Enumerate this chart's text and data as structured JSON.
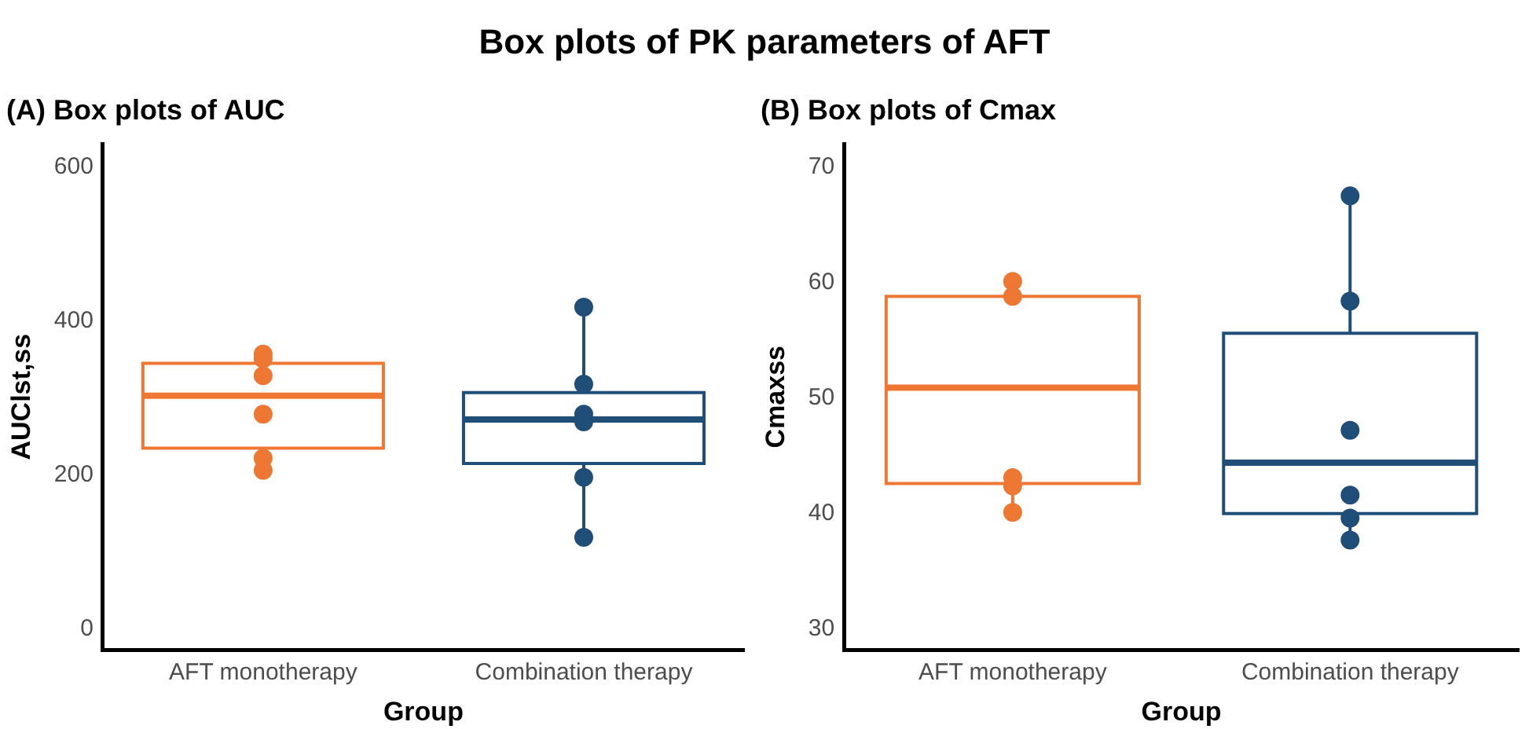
{
  "chart_data": [
    {
      "type": "other",
      "title": "Box plots of PK parameters of AFT"
    },
    {
      "type": "box",
      "title": "(A) Box plots of AUC",
      "xlabel": "Group",
      "ylabel": "AUClst,ss",
      "categories": [
        "AFT monotherapy",
        "Combination therapy"
      ],
      "colors": [
        "#ee7733",
        "#1f4e79"
      ],
      "boxes": [
        {
          "low": 206,
          "q1": 235,
          "median": 303,
          "q3": 345,
          "high": 357
        },
        {
          "low": 119,
          "q1": 215,
          "median": 272,
          "q3": 307,
          "high": 418
        }
      ],
      "ylim": [
        -27,
        630
      ],
      "yticks": [
        0,
        200,
        400,
        600
      ],
      "grid": false,
      "legend": false,
      "marker": "circle",
      "series": [
        {
          "type": "scatter",
          "x": [
            "AFT monotherapy",
            "AFT monotherapy",
            "AFT monotherapy",
            "AFT monotherapy",
            "AFT monotherapy",
            "AFT monotherapy",
            "Combination therapy",
            "Combination therapy",
            "Combination therapy",
            "Combination therapy",
            "Combination therapy",
            "Combination therapy"
          ],
          "values": [
            357,
            351,
            329,
            279,
            222,
            206,
            418,
            318,
            279,
            269,
            197,
            119
          ],
          "colors": [
            "#ee7733",
            "#ee7733",
            "#ee7733",
            "#ee7733",
            "#ee7733",
            "#ee7733",
            "#1f4e79",
            "#1f4e79",
            "#1f4e79",
            "#1f4e79",
            "#1f4e79",
            "#1f4e79"
          ]
        }
      ]
    },
    {
      "type": "box",
      "title": "(B) Box plots of Cmax",
      "xlabel": "Group",
      "ylabel": "Cmaxss",
      "categories": [
        "AFT monotherapy",
        "Combination therapy"
      ],
      "colors": [
        "#ee7733",
        "#1f4e79"
      ],
      "boxes": [
        {
          "low": 40.1,
          "q1": 42.6,
          "median": 50.9,
          "q3": 58.8,
          "high": 60.1
        },
        {
          "low": 37.7,
          "q1": 40.0,
          "median": 44.4,
          "q3": 55.6,
          "high": 67.5
        }
      ],
      "ylim": [
        28.2,
        72
      ],
      "yticks": [
        30,
        40,
        50,
        60,
        70
      ],
      "grid": false,
      "legend": false,
      "marker": "circle",
      "series": [
        {
          "type": "scatter",
          "x": [
            "AFT monotherapy",
            "AFT monotherapy",
            "AFT monotherapy",
            "AFT monotherapy",
            "AFT monotherapy",
            "Combination therapy",
            "Combination therapy",
            "Combination therapy",
            "Combination therapy",
            "Combination therapy",
            "Combination therapy"
          ],
          "values": [
            60.1,
            58.8,
            43.1,
            42.4,
            40.1,
            67.5,
            58.4,
            47.2,
            41.6,
            39.6,
            37.7
          ],
          "colors": [
            "#ee7733",
            "#ee7733",
            "#ee7733",
            "#ee7733",
            "#ee7733",
            "#1f4e79",
            "#1f4e79",
            "#1f4e79",
            "#1f4e79",
            "#1f4e79",
            "#1f4e79"
          ]
        }
      ]
    }
  ]
}
